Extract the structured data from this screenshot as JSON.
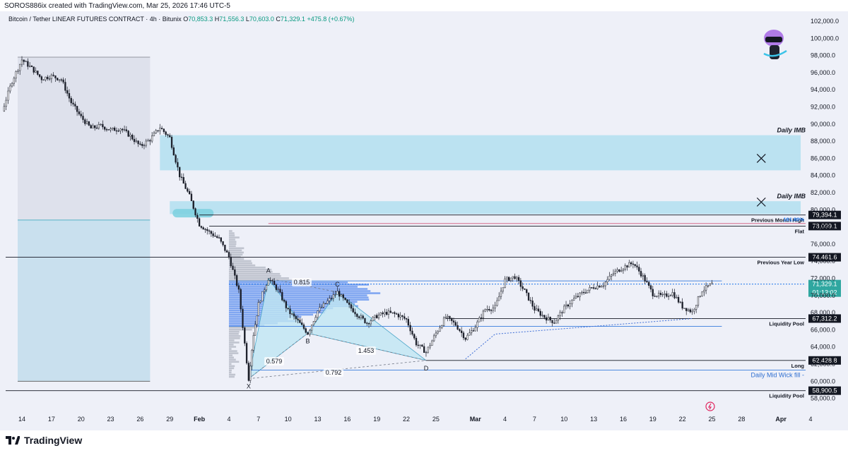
{
  "credit": "SOROS886ix created with TradingView.com, Mar 25, 2026 17:46 UTC-5",
  "logo_text": "TradingView",
  "colors": {
    "background": "#eef0f8",
    "up_candle": "#1b1e29",
    "down_candle": "#1b1e29",
    "imb_zone": "#b2dff0",
    "volume_profile": "#5b8def",
    "pattern_fill": "#bfe6f2",
    "accent_label": "#2fa7a0"
  },
  "chart_data": {
    "type": "candlestick",
    "symbol_line": {
      "name": "Bitcoin / Tether LINEAR FUTURES CONTRACT · 4h · Bitunix",
      "o_label": "O",
      "o": "70,853.3",
      "h_label": "H",
      "h": "71,556.3",
      "l_label": "L",
      "l": "70,603.0",
      "c_label": "C",
      "c": "71,329.1",
      "change": "+475.8 (+0.67%)"
    },
    "y_axis": {
      "min": 57000,
      "max": 103000,
      "ticks": [
        "102,000.0",
        "100,000.0",
        "98,000.0",
        "96,000.0",
        "94,000.0",
        "92,000.0",
        "90,000.0",
        "88,000.0",
        "86,000.0",
        "84,000.0",
        "82,000.0",
        "80,000.0",
        "78,000.0",
        "76,000.0",
        "74,000.0",
        "72,000.0",
        "70,000.0",
        "68,000.0",
        "66,000.0",
        "64,000.0",
        "62,000.0",
        "60,000.0",
        "58,000.0"
      ],
      "tick_values": [
        102000,
        100000,
        98000,
        96000,
        94000,
        92000,
        90000,
        88000,
        86000,
        84000,
        82000,
        80000,
        78000,
        76000,
        74000,
        72000,
        70000,
        68000,
        66000,
        64000,
        62000,
        60000,
        58000
      ]
    },
    "x_axis": {
      "labels": [
        {
          "day": "2026-01-14",
          "label": "14"
        },
        {
          "day": "2026-01-17",
          "label": "17"
        },
        {
          "day": "2026-01-20",
          "label": "20"
        },
        {
          "day": "2026-01-23",
          "label": "23"
        },
        {
          "day": "2026-01-26",
          "label": "26"
        },
        {
          "day": "2026-01-29",
          "label": "29"
        },
        {
          "day": "2026-02-01",
          "label": "Feb"
        },
        {
          "day": "2026-02-04",
          "label": "4"
        },
        {
          "day": "2026-02-07",
          "label": "7"
        },
        {
          "day": "2026-02-10",
          "label": "10"
        },
        {
          "day": "2026-02-13",
          "label": "13"
        },
        {
          "day": "2026-02-16",
          "label": "16"
        },
        {
          "day": "2026-02-19",
          "label": "19"
        },
        {
          "day": "2026-02-22",
          "label": "22"
        },
        {
          "day": "2026-02-25",
          "label": "25"
        },
        {
          "day": "2026-03-01",
          "label": "Mar"
        },
        {
          "day": "2026-03-04",
          "label": "4"
        },
        {
          "day": "2026-03-07",
          "label": "7"
        },
        {
          "day": "2026-03-10",
          "label": "10"
        },
        {
          "day": "2026-03-13",
          "label": "13"
        },
        {
          "day": "2026-03-16",
          "label": "16"
        },
        {
          "day": "2026-03-19",
          "label": "19"
        },
        {
          "day": "2026-03-22",
          "label": "22"
        },
        {
          "day": "2026-03-25",
          "label": "25"
        },
        {
          "day": "2026-03-28",
          "label": "28"
        },
        {
          "day": "2026-04-01",
          "label": "Apr"
        },
        {
          "day": "2026-04-04",
          "label": "4"
        }
      ]
    },
    "price_path": [
      [
        "2026-01-12",
        91500
      ],
      [
        "2026-01-13",
        95000
      ],
      [
        "2026-01-14",
        97500
      ],
      [
        "2026-01-15",
        96500
      ],
      [
        "2026-01-16",
        95300
      ],
      [
        "2026-01-17",
        95600
      ],
      [
        "2026-01-18",
        95200
      ],
      [
        "2026-01-19",
        92500
      ],
      [
        "2026-01-20",
        90800
      ],
      [
        "2026-01-21",
        89500
      ],
      [
        "2026-01-22",
        89800
      ],
      [
        "2026-01-23",
        89300
      ],
      [
        "2026-01-24",
        89500
      ],
      [
        "2026-01-25",
        88600
      ],
      [
        "2026-01-26",
        87400
      ],
      [
        "2026-01-27",
        88200
      ],
      [
        "2026-01-28",
        89600
      ],
      [
        "2026-01-29",
        88400
      ],
      [
        "2026-01-30",
        84000
      ],
      [
        "2026-01-31",
        81600
      ],
      [
        "2026-02-01",
        78300
      ],
      [
        "2026-02-02",
        77400
      ],
      [
        "2026-02-03",
        76600
      ],
      [
        "2026-02-04",
        74500
      ],
      [
        "2026-02-05",
        70500
      ],
      [
        "2026-02-06",
        60300
      ],
      [
        "2026-02-06T12",
        65500
      ],
      [
        "2026-02-07",
        69000
      ],
      [
        "2026-02-08",
        72000
      ],
      [
        "2026-02-09",
        70600
      ],
      [
        "2026-02-10",
        68200
      ],
      [
        "2026-02-11",
        67000
      ],
      [
        "2026-02-12",
        65600
      ],
      [
        "2026-02-13",
        68200
      ],
      [
        "2026-02-14",
        69300
      ],
      [
        "2026-02-15",
        70400
      ],
      [
        "2026-02-16",
        69000
      ],
      [
        "2026-02-17",
        67800
      ],
      [
        "2026-02-18",
        66800
      ],
      [
        "2026-02-19",
        67600
      ],
      [
        "2026-02-20",
        68000
      ],
      [
        "2026-02-21",
        67800
      ],
      [
        "2026-02-22",
        67200
      ],
      [
        "2026-02-23",
        64400
      ],
      [
        "2026-02-24",
        63400
      ],
      [
        "2026-02-25",
        65600
      ],
      [
        "2026-02-26",
        67500
      ],
      [
        "2026-02-27",
        66600
      ],
      [
        "2026-02-28",
        65000
      ],
      [
        "2026-03-01",
        66400
      ],
      [
        "2026-03-02",
        68400
      ],
      [
        "2026-03-03",
        68600
      ],
      [
        "2026-03-04",
        71800
      ],
      [
        "2026-03-05",
        72200
      ],
      [
        "2026-03-06",
        70500
      ],
      [
        "2026-03-07",
        68400
      ],
      [
        "2026-03-08",
        67500
      ],
      [
        "2026-03-09",
        66900
      ],
      [
        "2026-03-10",
        68500
      ],
      [
        "2026-03-11",
        69600
      ],
      [
        "2026-03-12",
        70400
      ],
      [
        "2026-03-13",
        71000
      ],
      [
        "2026-03-14",
        71300
      ],
      [
        "2026-03-15",
        72600
      ],
      [
        "2026-03-16",
        73300
      ],
      [
        "2026-03-17",
        73800
      ],
      [
        "2026-03-18",
        72200
      ],
      [
        "2026-03-19",
        70200
      ],
      [
        "2026-03-20",
        69900
      ],
      [
        "2026-03-21",
        70300
      ],
      [
        "2026-03-22",
        68700
      ],
      [
        "2026-03-23",
        68100
      ],
      [
        "2026-03-24",
        70600
      ],
      [
        "2026-03-25",
        71329
      ]
    ],
    "zones": [
      {
        "name": "Daily IMB",
        "from_day": "2026-01-28",
        "to_day": "2026-04-03",
        "low": 84600,
        "high": 88700,
        "label": "Daily IMB"
      },
      {
        "name": "Daily IMB",
        "from_day": "2026-01-29",
        "to_day": "2026-04-03",
        "low": 79500,
        "high": 81000,
        "label": "Daily IMB"
      }
    ],
    "levels": [
      {
        "price": 79394.1,
        "label": "Previous Month High",
        "tag": "79,394.1",
        "from_day": "2026-02-01"
      },
      {
        "price": 78400,
        "label": "161.80%",
        "tag": "",
        "from_day": "2026-02-08",
        "fib": true
      },
      {
        "price": 78099.1,
        "label": "Flat",
        "tag": "78,099.1",
        "from_day": "2026-02-02"
      },
      {
        "price": 74461.6,
        "label": "Previous Year Low",
        "tag": "74,461.6",
        "from_day": "2026-01-12"
      },
      {
        "price": 71329.1,
        "label": "",
        "tag": "71,329.1",
        "countdown": "01:13:02",
        "from_day": "2026-02-04",
        "current": true
      },
      {
        "price": 67312.2,
        "label": "Liquidity Pool",
        "tag": "67,312.2",
        "from_day": "2026-02-26"
      },
      {
        "price": 62428.8,
        "label": "Long",
        "tag": "62,428.8",
        "from_day": "2026-02-24"
      },
      {
        "price": 61300,
        "label": "Daily Mid Wick fill -",
        "tag": "",
        "from_day": "2026-02-06",
        "blue": true
      },
      {
        "price": 58900.5,
        "label": "Liquidity Pool",
        "tag": "58,900.5",
        "from_day": "2026-01-12"
      }
    ],
    "harmonic": {
      "points": [
        {
          "name": "X",
          "day": "2026-02-06",
          "price": 60300
        },
        {
          "name": "A",
          "day": "2026-02-08",
          "price": 72000
        },
        {
          "name": "B",
          "day": "2026-02-12",
          "price": 65600
        },
        {
          "name": "C",
          "day": "2026-02-15",
          "price": 70400
        },
        {
          "name": "D",
          "day": "2026-02-24",
          "price": 62428.8
        }
      ],
      "ratios": [
        "0.579",
        "0.815",
        "1.453",
        "0.792"
      ]
    },
    "marks": [
      {
        "type": "x",
        "day": "2026-03-30",
        "price": 86000
      },
      {
        "type": "x",
        "day": "2026-03-30",
        "price": 80900
      }
    ]
  }
}
